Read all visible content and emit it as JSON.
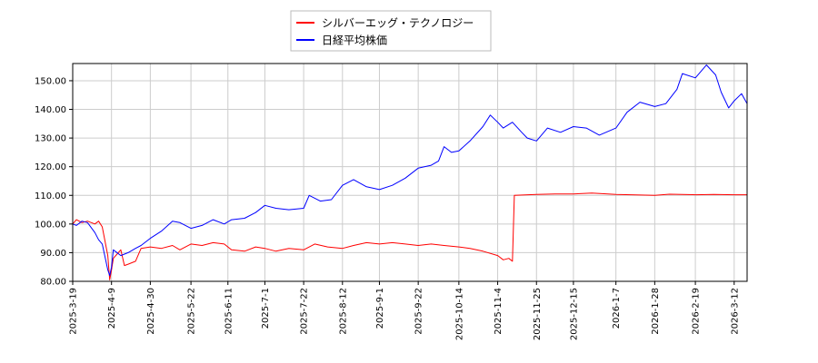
{
  "chart_data": {
    "type": "line",
    "title": "",
    "xlabel": "",
    "ylabel": "",
    "ylim": [
      80,
      156
    ],
    "xlim": [
      "2025-03-19",
      "2026-03-19"
    ],
    "grid": true,
    "legend_position": "top-center",
    "y_ticks": [
      "80.00",
      "90.00",
      "100.00",
      "110.00",
      "120.00",
      "130.00",
      "140.00",
      "150.00"
    ],
    "x_ticks": [
      "2025-3-19",
      "2025-4-9",
      "2025-4-30",
      "2025-5-22",
      "2025-6-11",
      "2025-7-1",
      "2025-7-22",
      "2025-8-12",
      "2025-9-1",
      "2025-9-22",
      "2025-10-14",
      "2025-11-4",
      "2025-11-25",
      "2025-12-15",
      "2026-1-7",
      "2026-1-28",
      "2026-2-19",
      "2026-3-12"
    ],
    "series": [
      {
        "name": "シルバーエッグ・テクノロジー",
        "color": "#ff0000",
        "points": [
          [
            "2025-03-19",
            100.0
          ],
          [
            "2025-03-21",
            101.5
          ],
          [
            "2025-03-24",
            100.5
          ],
          [
            "2025-03-27",
            101.0
          ],
          [
            "2025-03-31",
            100.0
          ],
          [
            "2025-04-02",
            101.0
          ],
          [
            "2025-04-04",
            99.0
          ],
          [
            "2025-04-07",
            89.0
          ],
          [
            "2025-04-08",
            80.5
          ],
          [
            "2025-04-09",
            84.0
          ],
          [
            "2025-04-10",
            88.0
          ],
          [
            "2025-04-14",
            91.0
          ],
          [
            "2025-04-16",
            85.5
          ],
          [
            "2025-04-18",
            86.0
          ],
          [
            "2025-04-22",
            87.0
          ],
          [
            "2025-04-25",
            91.5
          ],
          [
            "2025-04-30",
            92.0
          ],
          [
            "2025-05-06",
            91.5
          ],
          [
            "2025-05-12",
            92.5
          ],
          [
            "2025-05-16",
            91.0
          ],
          [
            "2025-05-22",
            93.0
          ],
          [
            "2025-05-28",
            92.5
          ],
          [
            "2025-06-03",
            93.5
          ],
          [
            "2025-06-09",
            93.0
          ],
          [
            "2025-06-13",
            91.0
          ],
          [
            "2025-06-20",
            90.5
          ],
          [
            "2025-06-26",
            92.0
          ],
          [
            "2025-07-01",
            91.5
          ],
          [
            "2025-07-07",
            90.5
          ],
          [
            "2025-07-14",
            91.5
          ],
          [
            "2025-07-22",
            91.0
          ],
          [
            "2025-07-28",
            93.0
          ],
          [
            "2025-08-04",
            92.0
          ],
          [
            "2025-08-12",
            91.5
          ],
          [
            "2025-08-18",
            92.5
          ],
          [
            "2025-08-25",
            93.5
          ],
          [
            "2025-09-01",
            93.0
          ],
          [
            "2025-09-08",
            93.5
          ],
          [
            "2025-09-15",
            93.0
          ],
          [
            "2025-09-22",
            92.5
          ],
          [
            "2025-09-29",
            93.0
          ],
          [
            "2025-10-06",
            92.5
          ],
          [
            "2025-10-14",
            92.0
          ],
          [
            "2025-10-20",
            91.5
          ],
          [
            "2025-10-27",
            90.5
          ],
          [
            "2025-11-04",
            89.0
          ],
          [
            "2025-11-07",
            87.5
          ],
          [
            "2025-11-10",
            88.0
          ],
          [
            "2025-11-12",
            87.0
          ],
          [
            "2025-11-13",
            110.0
          ],
          [
            "2025-11-25",
            110.3
          ],
          [
            "2025-12-05",
            110.5
          ],
          [
            "2025-12-15",
            110.5
          ],
          [
            "2025-12-25",
            110.8
          ],
          [
            "2026-01-07",
            110.3
          ],
          [
            "2026-01-15",
            110.2
          ],
          [
            "2026-01-28",
            110.0
          ],
          [
            "2026-02-05",
            110.4
          ],
          [
            "2026-02-19",
            110.2
          ],
          [
            "2026-03-01",
            110.3
          ],
          [
            "2026-03-12",
            110.2
          ],
          [
            "2026-03-19",
            110.2
          ]
        ]
      },
      {
        "name": "日経平均株価",
        "color": "#0000ff",
        "points": [
          [
            "2025-03-19",
            100.0
          ],
          [
            "2025-03-21",
            99.5
          ],
          [
            "2025-03-24",
            101.0
          ],
          [
            "2025-03-27",
            100.5
          ],
          [
            "2025-03-31",
            97.0
          ],
          [
            "2025-04-02",
            94.5
          ],
          [
            "2025-04-04",
            93.0
          ],
          [
            "2025-04-07",
            84.0
          ],
          [
            "2025-04-08",
            82.0
          ],
          [
            "2025-04-09",
            85.0
          ],
          [
            "2025-04-10",
            91.0
          ],
          [
            "2025-04-14",
            89.0
          ],
          [
            "2025-04-18",
            90.0
          ],
          [
            "2025-04-22",
            91.5
          ],
          [
            "2025-04-25",
            92.5
          ],
          [
            "2025-04-30",
            95.0
          ],
          [
            "2025-05-06",
            97.5
          ],
          [
            "2025-05-12",
            101.0
          ],
          [
            "2025-05-16",
            100.5
          ],
          [
            "2025-05-22",
            98.5
          ],
          [
            "2025-05-28",
            99.5
          ],
          [
            "2025-06-03",
            101.5
          ],
          [
            "2025-06-09",
            100.0
          ],
          [
            "2025-06-13",
            101.5
          ],
          [
            "2025-06-20",
            102.0
          ],
          [
            "2025-06-26",
            104.0
          ],
          [
            "2025-07-01",
            106.5
          ],
          [
            "2025-07-07",
            105.5
          ],
          [
            "2025-07-14",
            105.0
          ],
          [
            "2025-07-22",
            105.5
          ],
          [
            "2025-07-25",
            110.0
          ],
          [
            "2025-07-31",
            108.0
          ],
          [
            "2025-08-06",
            108.5
          ],
          [
            "2025-08-12",
            113.5
          ],
          [
            "2025-08-18",
            115.5
          ],
          [
            "2025-08-25",
            113.0
          ],
          [
            "2025-09-01",
            112.0
          ],
          [
            "2025-09-08",
            113.5
          ],
          [
            "2025-09-15",
            116.0
          ],
          [
            "2025-09-22",
            119.5
          ],
          [
            "2025-09-29",
            120.5
          ],
          [
            "2025-10-03",
            122.0
          ],
          [
            "2025-10-06",
            127.0
          ],
          [
            "2025-10-10",
            125.0
          ],
          [
            "2025-10-14",
            125.5
          ],
          [
            "2025-10-20",
            129.0
          ],
          [
            "2025-10-27",
            134.0
          ],
          [
            "2025-10-31",
            138.0
          ],
          [
            "2025-11-04",
            135.5
          ],
          [
            "2025-11-07",
            133.5
          ],
          [
            "2025-11-12",
            135.5
          ],
          [
            "2025-11-17",
            132.0
          ],
          [
            "2025-11-20",
            130.0
          ],
          [
            "2025-11-25",
            129.0
          ],
          [
            "2025-12-01",
            133.5
          ],
          [
            "2025-12-08",
            132.0
          ],
          [
            "2025-12-15",
            134.0
          ],
          [
            "2025-12-22",
            133.5
          ],
          [
            "2025-12-29",
            131.0
          ],
          [
            "2026-01-07",
            133.5
          ],
          [
            "2026-01-13",
            139.0
          ],
          [
            "2026-01-20",
            142.5
          ],
          [
            "2026-01-28",
            141.0
          ],
          [
            "2026-02-03",
            142.0
          ],
          [
            "2026-02-09",
            147.0
          ],
          [
            "2026-02-12",
            152.5
          ],
          [
            "2026-02-19",
            151.0
          ],
          [
            "2026-02-25",
            155.5
          ],
          [
            "2026-03-02",
            152.0
          ],
          [
            "2026-03-05",
            146.0
          ],
          [
            "2026-03-09",
            140.5
          ],
          [
            "2026-03-12",
            143.0
          ],
          [
            "2026-03-16",
            145.5
          ],
          [
            "2026-03-19",
            142.0
          ]
        ]
      }
    ]
  }
}
